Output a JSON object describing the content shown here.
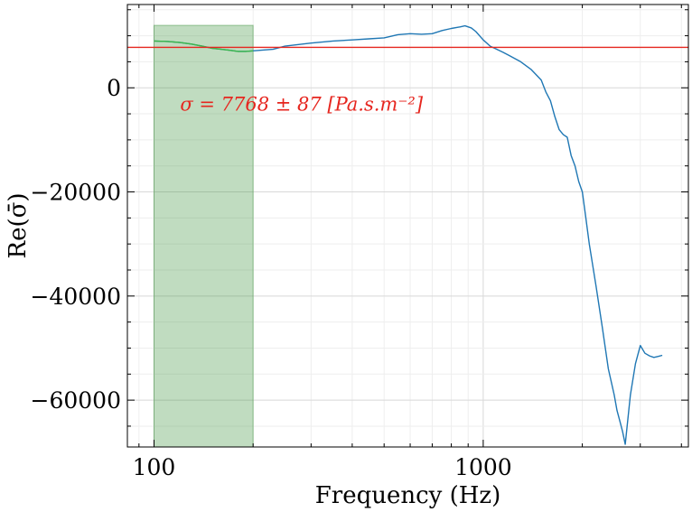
{
  "chart_data": {
    "type": "line",
    "xlabel": "Frequency (Hz)",
    "ylabel": "Re(σ̄)",
    "x_scale": "log",
    "xlim": [
      83,
      4200
    ],
    "ylim": [
      -69000,
      16000
    ],
    "grid": true,
    "x_major_ticks": [
      100,
      1000
    ],
    "x_tick_labels": [
      "100",
      "1000"
    ],
    "y_major_ticks": [
      0,
      -20000,
      -40000,
      -60000
    ],
    "y_tick_labels": [
      "0",
      "−20000",
      "−40000",
      "−60000"
    ],
    "shaded_region": {
      "x": [
        100,
        200
      ],
      "y": [
        -69000,
        12000
      ],
      "color": "#2e8b2e"
    },
    "reference_line": {
      "y": 7768,
      "color": "#e6261f"
    },
    "annotation": {
      "text": "σ = 7768 ± 87 [Pa.s.m⁻²]",
      "color": "#e6261f",
      "x": 120,
      "y": -3200
    },
    "series": [
      {
        "color": "#1f77b4",
        "x": [
          100,
          110,
          120,
          130,
          140,
          150,
          160,
          170,
          180,
          190,
          200,
          210,
          230,
          250,
          300,
          350,
          400,
          450,
          500,
          550,
          600,
          650,
          700,
          750,
          800,
          850,
          880,
          920,
          950,
          1000,
          1050,
          1100,
          1150,
          1200,
          1300,
          1400,
          1500,
          1550,
          1600,
          1650,
          1700,
          1750,
          1800,
          1850,
          1900,
          1950,
          2000,
          2050,
          2100,
          2200,
          2300,
          2400,
          2500,
          2550,
          2600,
          2650,
          2700,
          2800,
          2900,
          3000,
          3100,
          3200,
          3300,
          3400,
          3500
        ],
        "y": [
          9000,
          8900,
          8700,
          8400,
          8000,
          7600,
          7400,
          7200,
          7000,
          7000,
          7100,
          7200,
          7400,
          8000,
          8600,
          9000,
          9200,
          9400,
          9600,
          10200,
          10400,
          10300,
          10400,
          11000,
          11400,
          11700,
          11900,
          11500,
          10800,
          9200,
          8000,
          7400,
          6800,
          6200,
          5000,
          3500,
          1500,
          -800,
          -2500,
          -5500,
          -8000,
          -9000,
          -9500,
          -13000,
          -15000,
          -18000,
          -20000,
          -25000,
          -30000,
          -38000,
          -46000,
          -54000,
          -59000,
          -62000,
          -64000,
          -66000,
          -68500,
          -59000,
          -53000,
          -49500,
          -51000,
          -51500,
          -51800,
          -51600,
          -51400
        ]
      },
      {
        "color": "#3cb84a",
        "x": [
          100,
          110,
          120,
          130,
          140,
          150,
          160,
          170,
          180,
          190,
          200
        ],
        "y": [
          9000,
          8900,
          8700,
          8400,
          8000,
          7600,
          7400,
          7200,
          7000,
          7000,
          7100
        ]
      }
    ]
  }
}
